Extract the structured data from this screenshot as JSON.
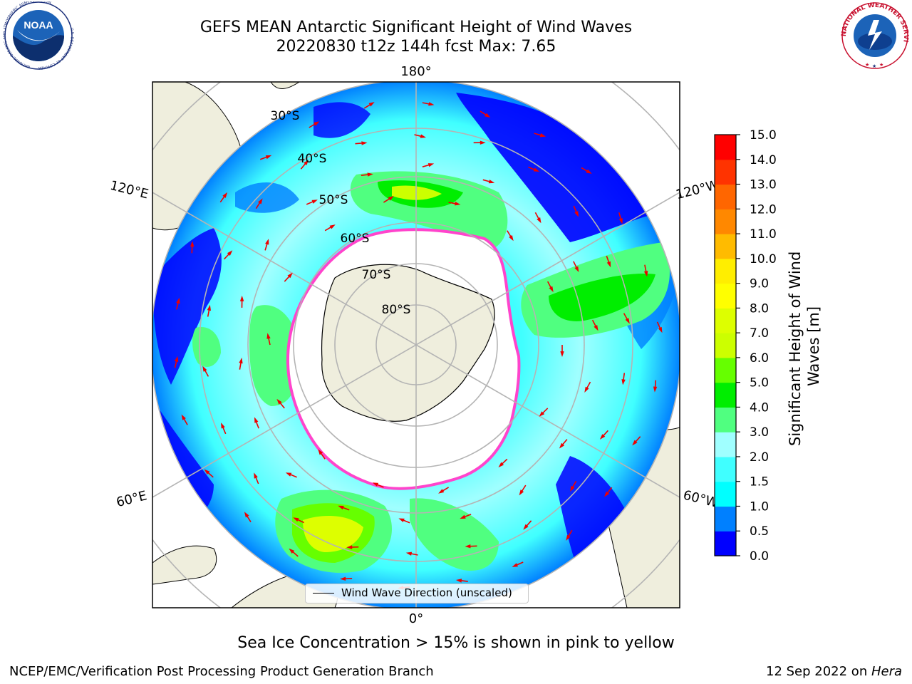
{
  "title": {
    "line1": "GEFS MEAN Antarctic Significant Height of Wind Waves",
    "line2": "20220830 t12z 144h fcst   Max: 7.65"
  },
  "map": {
    "projection": "south-polar-stereographic",
    "lon_labels": [
      "180°",
      "0°",
      "120°E",
      "120°W",
      "60°E",
      "60°W"
    ],
    "lat_labels": [
      "30°S",
      "40°S",
      "50°S",
      "60°S",
      "70°S",
      "80°S"
    ],
    "legend_label": "Wind Wave Direction (unscaled)",
    "colors": {
      "land": "#efeedd",
      "ocean_no_data": "#ffffff",
      "coast": "#000000",
      "grid": "#b4b4b4",
      "arrow": "#ee0000",
      "sea_ice": "#ff44cc"
    }
  },
  "colorbar": {
    "title_line1": "Significant Height of Wind",
    "title_line2": "Waves [m]",
    "ticks": [
      "0.0",
      "0.5",
      "1.0",
      "1.5",
      "2.0",
      "3.0",
      "4.0",
      "5.0",
      "6.0",
      "7.0",
      "8.0",
      "9.0",
      "10.0",
      "11.0",
      "12.0",
      "13.0",
      "14.0",
      "15.0"
    ],
    "colors": [
      "#0000ff",
      "#0080ff",
      "#00ffff",
      "#40ffff",
      "#a0ffff",
      "#50ff80",
      "#00ee00",
      "#66ff00",
      "#ccff00",
      "#ddff00",
      "#ffff00",
      "#ffee00",
      "#ffbb00",
      "#ff8800",
      "#ff6600",
      "#ff3300",
      "#ff0000"
    ]
  },
  "caption": "Sea Ice Concentration > 15% is shown in pink to yellow",
  "footer": {
    "left": "NCEP/EMC/Verification Post Processing Product Generation Branch",
    "date": "12 Sep 2022 on ",
    "host": "Hera"
  },
  "logos": {
    "left": "NOAA",
    "left_ring": "NATIONAL OCEANIC AND ATMOSPHERIC ADMINISTRATION",
    "left_ring_bottom": "U.S. DEPARTMENT OF COMMERCE",
    "right_ring": "NATIONAL WEATHER SERVICE"
  }
}
